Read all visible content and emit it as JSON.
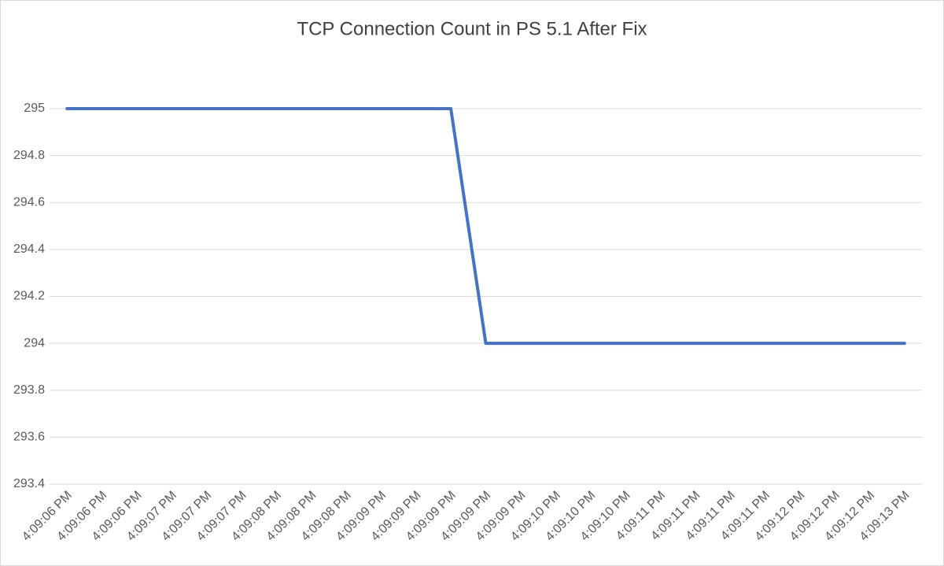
{
  "chart_data": {
    "type": "line",
    "title": "TCP Connection Count in PS 5.1 After Fix",
    "categories": [
      "4:09:06 PM",
      "4:09:06 PM",
      "4:09:06 PM",
      "4:09:07 PM",
      "4:09:07 PM",
      "4:09:07 PM",
      "4:09:08 PM",
      "4:09:08 PM",
      "4:09:08 PM",
      "4:09:09 PM",
      "4:09:09 PM",
      "4:09:09 PM",
      "4:09:09 PM",
      "4:09:09 PM",
      "4:09:10 PM",
      "4:09:10 PM",
      "4:09:10 PM",
      "4:09:11 PM",
      "4:09:11 PM",
      "4:09:11 PM",
      "4:09:11 PM",
      "4:09:12 PM",
      "4:09:12 PM",
      "4:09:12 PM",
      "4:09:13 PM"
    ],
    "values": [
      295,
      295,
      295,
      295,
      295,
      295,
      295,
      295,
      295,
      295,
      295,
      295,
      294,
      294,
      294,
      294,
      294,
      294,
      294,
      294,
      294,
      294,
      294,
      294,
      294
    ],
    "color": "#4472c4",
    "ylim": [
      293.4,
      295
    ],
    "yticks": [
      293.4,
      293.6,
      293.8,
      294,
      294.2,
      294.4,
      294.6,
      294.8,
      295
    ],
    "grid": true
  }
}
